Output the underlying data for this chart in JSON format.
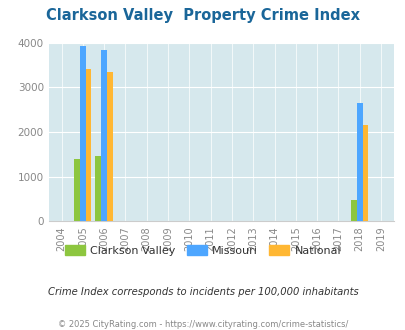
{
  "title": "Clarkson Valley  Property Crime Index",
  "years": [
    2004,
    2005,
    2006,
    2007,
    2008,
    2009,
    2010,
    2011,
    2012,
    2013,
    2014,
    2015,
    2016,
    2017,
    2018,
    2019
  ],
  "clarkson_valley": [
    0,
    1400,
    1460,
    0,
    0,
    0,
    0,
    0,
    0,
    0,
    0,
    0,
    0,
    0,
    480,
    0
  ],
  "missouri": [
    0,
    3940,
    3830,
    0,
    0,
    0,
    0,
    0,
    0,
    0,
    0,
    0,
    0,
    0,
    2650,
    0
  ],
  "national": [
    0,
    3420,
    3350,
    0,
    0,
    0,
    0,
    0,
    0,
    0,
    0,
    0,
    0,
    0,
    2150,
    0
  ],
  "clarkson_color": "#8dc63f",
  "missouri_color": "#4da6ff",
  "national_color": "#ffb733",
  "bg_color": "#d6e8ed",
  "ylim": [
    0,
    4000
  ],
  "subtitle": "Crime Index corresponds to incidents per 100,000 inhabitants",
  "footer": "© 2025 CityRating.com - https://www.cityrating.com/crime-statistics/",
  "title_color": "#1a6699",
  "subtitle_color": "#333333",
  "footer_color": "#888888",
  "bar_width": 0.27,
  "grid_color": "#ffffff",
  "tick_color": "#888888"
}
